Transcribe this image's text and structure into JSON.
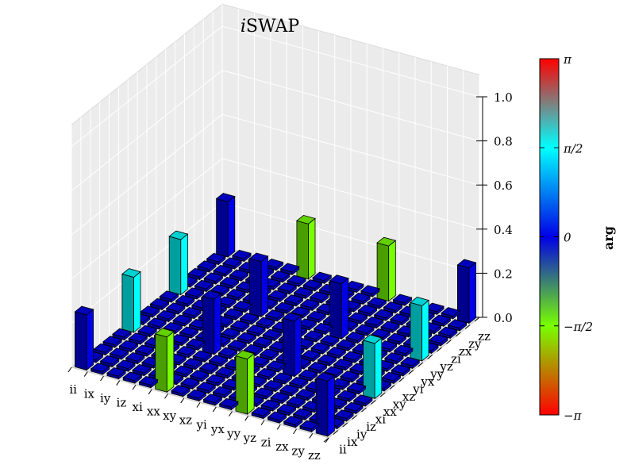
{
  "chart_data": {
    "type": "bar3d",
    "title": "iSWAP",
    "title_italic_prefix": "i",
    "title_rest": "SWAP",
    "x_labels": [
      "ii",
      "ix",
      "iy",
      "iz",
      "xi",
      "xx",
      "xy",
      "xz",
      "yi",
      "yx",
      "yy",
      "yz",
      "zi",
      "zx",
      "zy",
      "zz"
    ],
    "y_labels": [
      "ii",
      "ix",
      "iy",
      "iz",
      "xi",
      "xx",
      "xy",
      "xz",
      "yi",
      "yx",
      "yy",
      "yz",
      "zi",
      "zx",
      "zy",
      "zz"
    ],
    "zlim": [
      0,
      1.0
    ],
    "z_ticks": [
      "0.0",
      "0.2",
      "0.4",
      "0.6",
      "0.8",
      "1.0"
    ],
    "grid": true,
    "colorbar": {
      "label": "arg",
      "ticks": [
        "−π",
        "−π/2",
        "0",
        "π/2",
        "π"
      ],
      "range": [
        -3.1416,
        3.1416
      ]
    },
    "bars": [
      {
        "x": "ii",
        "y": "ii",
        "value": 0.25,
        "phase": 0
      },
      {
        "x": "xx",
        "y": "xx",
        "value": 0.25,
        "phase": 0
      },
      {
        "x": "yy",
        "y": "yy",
        "value": 0.25,
        "phase": 0
      },
      {
        "x": "zz",
        "y": "zz",
        "value": 0.25,
        "phase": 0
      },
      {
        "x": "ii",
        "y": "zz",
        "value": 0.25,
        "phase": 0
      },
      {
        "x": "zz",
        "y": "ii",
        "value": 0.25,
        "phase": 0
      },
      {
        "x": "xx",
        "y": "yy",
        "value": 0.25,
        "phase": 0
      },
      {
        "x": "yy",
        "y": "xx",
        "value": 0.25,
        "phase": 0
      },
      {
        "x": "ii",
        "y": "xx",
        "value": 0.25,
        "phase": 1.5708
      },
      {
        "x": "ii",
        "y": "yy",
        "value": 0.25,
        "phase": 1.5708
      },
      {
        "x": "zz",
        "y": "xx",
        "value": 0.25,
        "phase": 1.5708
      },
      {
        "x": "zz",
        "y": "yy",
        "value": 0.25,
        "phase": 1.5708
      },
      {
        "x": "xx",
        "y": "ii",
        "value": 0.25,
        "phase": -1.5708
      },
      {
        "x": "yy",
        "y": "ii",
        "value": 0.25,
        "phase": -1.5708
      },
      {
        "x": "xx",
        "y": "zz",
        "value": 0.25,
        "phase": -1.5708
      },
      {
        "x": "yy",
        "y": "zz",
        "value": 0.25,
        "phase": -1.5708
      }
    ],
    "default_value": 0.0,
    "default_phase": 0
  }
}
